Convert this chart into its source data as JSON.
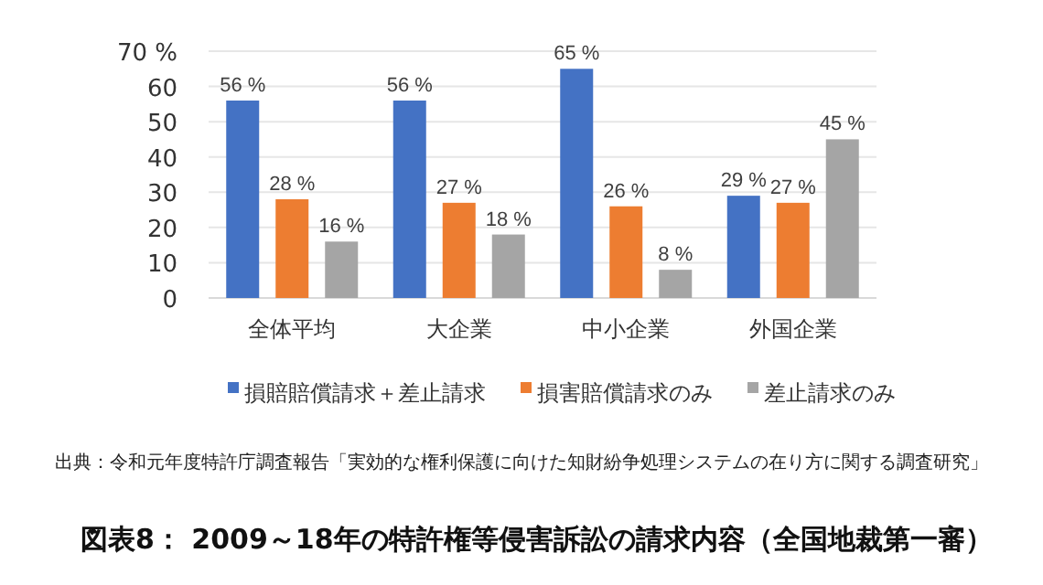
{
  "chart_data": {
    "type": "bar",
    "title": "図表8： 2009～18年の特許権等侵害訴訟の請求内容（全国地裁第一審）",
    "annotations": [
      "出典：令和元年度特許庁調査報告「実効的な権利保護に向けた知財紛争処理システムの在り方に関する調査研究」"
    ],
    "categories": [
      "全体平均",
      "大企業",
      "中小企業",
      "外国企業"
    ],
    "series": [
      {
        "name": "損賠賠償請求＋差止請求",
        "color": "#4472c4",
        "values": [
          56,
          56,
          65,
          29
        ],
        "value_labels": [
          "56 %",
          "56 %",
          "65 %",
          "29 %"
        ]
      },
      {
        "name": "損害賠償請求のみ",
        "color": "#ed7d31",
        "values": [
          28,
          27,
          26,
          27
        ],
        "value_labels": [
          "28 %",
          "27 %",
          "26 %",
          "27 %"
        ]
      },
      {
        "name": "差止請求のみ",
        "color": "#a5a5a5",
        "values": [
          16,
          18,
          8,
          45
        ],
        "value_labels": [
          "16 %",
          "18 %",
          "8 %",
          "45 %"
        ]
      }
    ],
    "ylim": [
      0,
      70
    ],
    "yticks": [
      0,
      10,
      20,
      30,
      40,
      50,
      60,
      {
        "value": 70,
        "label": "70 %"
      }
    ],
    "grid": "y",
    "legend": "bottom"
  }
}
